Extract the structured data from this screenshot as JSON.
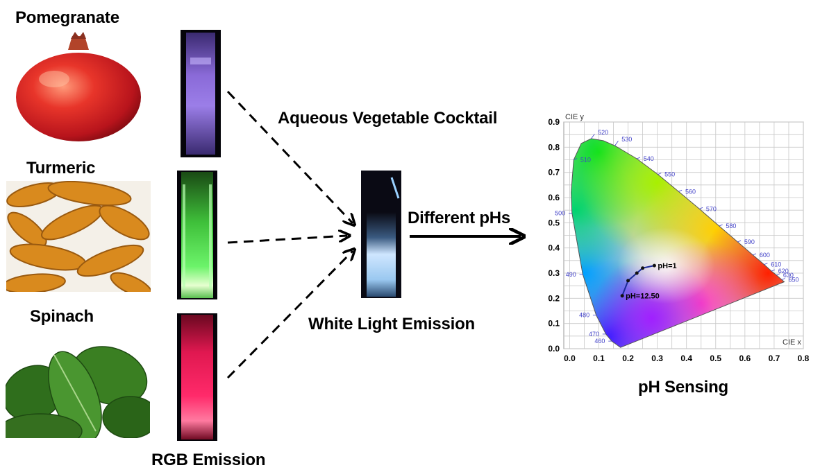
{
  "labels": {
    "pomegranate": "Pomegranate",
    "turmeric": "Turmeric",
    "spinach": "Spinach",
    "rgb_emission": "RGB Emission",
    "cocktail": "Aqueous Vegetable Cocktail",
    "white_light": "White Light Emission",
    "different_phs": "Different pHs",
    "ph_sensing": "pH Sensing"
  },
  "emission_colors": {
    "violet": "#9b7ee8",
    "green": "#6cf36a",
    "red": "#ff2a6a",
    "white": "#cfe6ff"
  },
  "chart_data": {
    "type": "scatter",
    "title": "",
    "xlabel": "CIE x",
    "ylabel": "CIE y",
    "xlim": [
      -0.02,
      0.8
    ],
    "ylim": [
      0.0,
      0.9
    ],
    "grid": true,
    "x_ticks": [
      "0.0",
      "0.1",
      "0.2",
      "0.3",
      "0.4",
      "0.5",
      "0.6",
      "0.7",
      "0.8"
    ],
    "y_ticks": [
      "0.0",
      "0.1",
      "0.2",
      "0.3",
      "0.4",
      "0.5",
      "0.6",
      "0.7",
      "0.8",
      "0.9"
    ],
    "wavelength_labels": [
      {
        "nm": "460",
        "x": 0.144,
        "y": 0.03
      },
      {
        "nm": "470",
        "x": 0.124,
        "y": 0.058
      },
      {
        "nm": "480",
        "x": 0.091,
        "y": 0.133
      },
      {
        "nm": "490",
        "x": 0.045,
        "y": 0.295
      },
      {
        "nm": "500",
        "x": 0.008,
        "y": 0.538
      },
      {
        "nm": "510",
        "x": 0.014,
        "y": 0.75
      },
      {
        "nm": "520",
        "x": 0.074,
        "y": 0.834
      },
      {
        "nm": "530",
        "x": 0.155,
        "y": 0.806
      },
      {
        "nm": "540",
        "x": 0.23,
        "y": 0.754
      },
      {
        "nm": "550",
        "x": 0.302,
        "y": 0.692
      },
      {
        "nm": "560",
        "x": 0.373,
        "y": 0.624
      },
      {
        "nm": "570",
        "x": 0.444,
        "y": 0.555
      },
      {
        "nm": "580",
        "x": 0.512,
        "y": 0.487
      },
      {
        "nm": "590",
        "x": 0.575,
        "y": 0.424
      },
      {
        "nm": "600",
        "x": 0.627,
        "y": 0.372
      },
      {
        "nm": "610",
        "x": 0.666,
        "y": 0.334
      },
      {
        "nm": "620",
        "x": 0.691,
        "y": 0.308
      },
      {
        "nm": "630",
        "x": 0.708,
        "y": 0.292
      },
      {
        "nm": "650",
        "x": 0.726,
        "y": 0.274
      }
    ],
    "series": [
      {
        "name": "",
        "x": [
          0.29,
          0.25,
          0.23,
          0.2,
          0.18
        ],
        "y": [
          0.33,
          0.32,
          0.3,
          0.27,
          0.21
        ],
        "point_labels": [
          "pH=1",
          "",
          "",
          "",
          "pH=12.50"
        ]
      }
    ]
  }
}
